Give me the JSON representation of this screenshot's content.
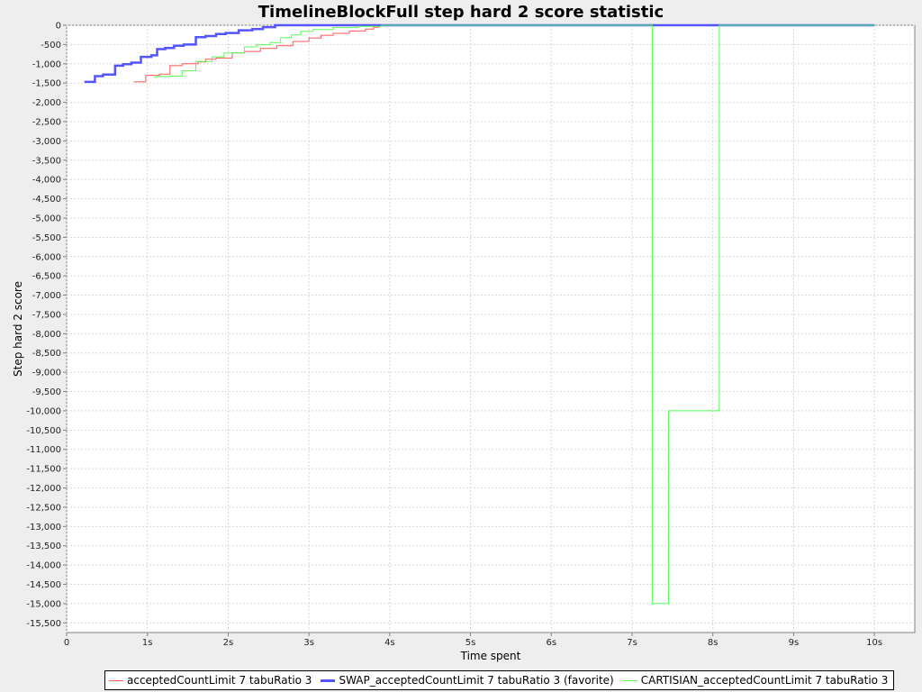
{
  "chart_data": {
    "type": "line",
    "title": "TimelineBlockFull step hard 2 score statistic",
    "xlabel": "Time spent",
    "ylabel": "Step hard 2 score",
    "xlim": [
      0,
      10.5
    ],
    "ylim": [
      -15750,
      0
    ],
    "x_ticks": [
      0,
      1,
      2,
      3,
      4,
      5,
      6,
      7,
      8,
      9,
      10
    ],
    "x_tick_labels": [
      "0",
      "1s",
      "2s",
      "3s",
      "4s",
      "5s",
      "6s",
      "7s",
      "8s",
      "9s",
      "10s"
    ],
    "y_ticks": [
      0,
      -500,
      -1000,
      -1500,
      -2000,
      -2500,
      -3000,
      -3500,
      -4000,
      -4500,
      -5000,
      -5500,
      -6000,
      -6500,
      -7000,
      -7500,
      -8000,
      -8500,
      -9000,
      -9500,
      -10000,
      -10500,
      -11000,
      -11500,
      -12000,
      -12500,
      -13000,
      -13500,
      -14000,
      -14500,
      -15000,
      -15500
    ],
    "y_tick_labels": [
      "0",
      "-500",
      "-1,000",
      "-1,500",
      "-2,000",
      "-2,500",
      "-3,000",
      "-3,500",
      "-4,000",
      "-4,500",
      "-5,000",
      "-5,500",
      "-6,000",
      "-6,500",
      "-7,000",
      "-7,500",
      "-8,000",
      "-8,500",
      "-9,000",
      "-9,500",
      "-10,000",
      "-10,500",
      "-11,000",
      "-11,500",
      "-12,000",
      "-12,500",
      "-13,000",
      "-13,500",
      "-14,000",
      "-14,500",
      "-15,000",
      "-15,500"
    ],
    "grid": true,
    "legend_position": "bottom",
    "series": [
      {
        "name": "acceptedCountLimit 7 tabuRatio 3",
        "color": "#ff5555",
        "bold": false,
        "points": [
          [
            0.83,
            -1470
          ],
          [
            0.98,
            -1470
          ],
          [
            0.98,
            -1300
          ],
          [
            1.15,
            -1300
          ],
          [
            1.15,
            -1270
          ],
          [
            1.28,
            -1270
          ],
          [
            1.28,
            -1050
          ],
          [
            1.43,
            -1050
          ],
          [
            1.43,
            -1000
          ],
          [
            1.63,
            -1000
          ],
          [
            1.63,
            -950
          ],
          [
            1.72,
            -950
          ],
          [
            1.72,
            -880
          ],
          [
            1.85,
            -880
          ],
          [
            1.85,
            -850
          ],
          [
            2.05,
            -850
          ],
          [
            2.05,
            -720
          ],
          [
            2.2,
            -720
          ],
          [
            2.2,
            -680
          ],
          [
            2.4,
            -680
          ],
          [
            2.4,
            -600
          ],
          [
            2.6,
            -600
          ],
          [
            2.6,
            -530
          ],
          [
            2.8,
            -530
          ],
          [
            2.8,
            -420
          ],
          [
            3.0,
            -420
          ],
          [
            3.0,
            -330
          ],
          [
            3.15,
            -330
          ],
          [
            3.15,
            -260
          ],
          [
            3.3,
            -260
          ],
          [
            3.3,
            -210
          ],
          [
            3.5,
            -210
          ],
          [
            3.5,
            -150
          ],
          [
            3.7,
            -150
          ],
          [
            3.7,
            -100
          ],
          [
            3.8,
            -100
          ],
          [
            3.8,
            -50
          ],
          [
            3.87,
            -50
          ],
          [
            3.87,
            0
          ],
          [
            10.0,
            0
          ]
        ]
      },
      {
        "name": "SWAP_acceptedCountLimit 7 tabuRatio 3 (favorite)",
        "color": "#5555ff",
        "bold": true,
        "points": [
          [
            0.22,
            -1470
          ],
          [
            0.35,
            -1470
          ],
          [
            0.35,
            -1320
          ],
          [
            0.45,
            -1320
          ],
          [
            0.45,
            -1280
          ],
          [
            0.6,
            -1280
          ],
          [
            0.6,
            -1050
          ],
          [
            0.7,
            -1050
          ],
          [
            0.7,
            -1010
          ],
          [
            0.8,
            -1010
          ],
          [
            0.8,
            -970
          ],
          [
            0.92,
            -970
          ],
          [
            0.92,
            -820
          ],
          [
            1.05,
            -820
          ],
          [
            1.05,
            -780
          ],
          [
            1.12,
            -780
          ],
          [
            1.12,
            -620
          ],
          [
            1.22,
            -620
          ],
          [
            1.22,
            -590
          ],
          [
            1.33,
            -590
          ],
          [
            1.33,
            -530
          ],
          [
            1.45,
            -530
          ],
          [
            1.45,
            -500
          ],
          [
            1.6,
            -500
          ],
          [
            1.6,
            -310
          ],
          [
            1.72,
            -310
          ],
          [
            1.72,
            -280
          ],
          [
            1.85,
            -280
          ],
          [
            1.85,
            -230
          ],
          [
            1.97,
            -230
          ],
          [
            1.97,
            -200
          ],
          [
            2.13,
            -200
          ],
          [
            2.13,
            -130
          ],
          [
            2.3,
            -130
          ],
          [
            2.3,
            -100
          ],
          [
            2.43,
            -100
          ],
          [
            2.43,
            -50
          ],
          [
            2.58,
            -50
          ],
          [
            2.58,
            0
          ],
          [
            10.0,
            0
          ]
        ]
      },
      {
        "name": "CARTISIAN_acceptedCountLimit 7 tabuRatio 3",
        "color": "#55ff55",
        "bold": false,
        "points": [
          [
            1.08,
            -1350
          ],
          [
            1.12,
            -1350
          ],
          [
            1.12,
            -1330
          ],
          [
            1.28,
            -1330
          ],
          [
            1.28,
            -1320
          ],
          [
            1.43,
            -1320
          ],
          [
            1.43,
            -1180
          ],
          [
            1.6,
            -1180
          ],
          [
            1.6,
            -940
          ],
          [
            1.8,
            -940
          ],
          [
            1.8,
            -820
          ],
          [
            1.95,
            -820
          ],
          [
            1.95,
            -720
          ],
          [
            2.2,
            -720
          ],
          [
            2.2,
            -560
          ],
          [
            2.35,
            -560
          ],
          [
            2.35,
            -510
          ],
          [
            2.52,
            -510
          ],
          [
            2.52,
            -450
          ],
          [
            2.65,
            -450
          ],
          [
            2.65,
            -320
          ],
          [
            2.78,
            -320
          ],
          [
            2.78,
            -250
          ],
          [
            2.9,
            -250
          ],
          [
            2.9,
            -160
          ],
          [
            3.05,
            -160
          ],
          [
            3.05,
            -110
          ],
          [
            3.3,
            -110
          ],
          [
            3.3,
            -60
          ],
          [
            3.6,
            -60
          ],
          [
            3.6,
            -30
          ],
          [
            3.9,
            -30
          ],
          [
            3.9,
            0
          ],
          [
            7.25,
            0
          ],
          [
            7.25,
            -15000
          ],
          [
            7.45,
            -15000
          ],
          [
            7.45,
            -10000
          ],
          [
            8.08,
            -10000
          ],
          [
            8.08,
            0
          ],
          [
            10.0,
            0
          ]
        ]
      }
    ]
  }
}
